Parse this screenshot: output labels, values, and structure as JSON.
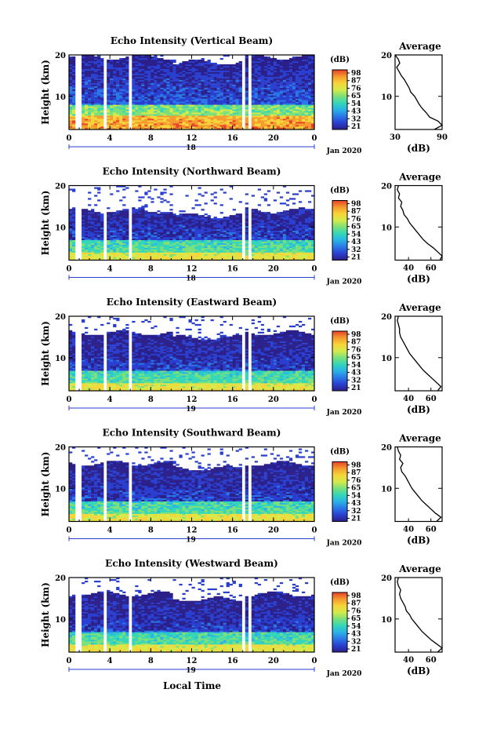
{
  "figure": {
    "x_axis_label": "Local Time",
    "colorbar_unit": "(dB)",
    "colorbar_ticks": [
      "98",
      "87",
      "76",
      "65",
      "54",
      "43",
      "32",
      "21"
    ],
    "colormap": [
      "#2b1f8a",
      "#2a3fd0",
      "#2a78e8",
      "#29b3e6",
      "#34d6b8",
      "#7be07a",
      "#d6ea4a",
      "#f7d43a",
      "#f59a2c",
      "#e8412a"
    ],
    "average_title": "Average",
    "average_xlabel": "(dB)",
    "month_label": "Jan 2020"
  },
  "chart_data": [
    {
      "type": "heatmap",
      "title": "Echo Intensity (Vertical Beam)",
      "ylabel": "Height (km)",
      "xlabel": "",
      "x_ticks": [
        "0",
        "4",
        "8",
        "12",
        "16",
        "20",
        "0"
      ],
      "y_ticks": [
        "20",
        "10"
      ],
      "xlim": [
        0,
        24
      ],
      "ylim": [
        2,
        20
      ],
      "date_label": "18",
      "data_gaps_hours": [
        [
          0.7,
          1.1
        ],
        [
          3.4,
          3.7
        ],
        [
          5.7,
          6.1
        ],
        [
          16.9,
          17.3
        ],
        [
          17.6,
          17.9
        ]
      ],
      "echo_top_km": 19.5,
      "average": {
        "title": "Average",
        "xlabel": "(dB)",
        "x_ticks": [
          "30",
          "90"
        ],
        "xlim": [
          30,
          90
        ],
        "y_ticks": [
          "20",
          "10"
        ],
        "height": [
          2,
          3,
          4,
          5,
          6,
          7,
          8,
          9,
          10,
          11,
          12,
          13,
          14,
          15,
          16,
          17,
          18,
          19,
          20
        ],
        "values": [
          80,
          90,
          85,
          74,
          70,
          65,
          61,
          58,
          55,
          50,
          48,
          45,
          42,
          38,
          35,
          32,
          36,
          34,
          30
        ]
      }
    },
    {
      "type": "heatmap",
      "title": "Echo Intensity (Northward Beam)",
      "ylabel": "Height (km)",
      "xlabel": "",
      "x_ticks": [
        "0",
        "4",
        "8",
        "12",
        "16",
        "20",
        "0"
      ],
      "y_ticks": [
        "20",
        "10"
      ],
      "xlim": [
        0,
        24
      ],
      "ylim": [
        2,
        20
      ],
      "date_label": "18",
      "data_gaps_hours": [
        [
          0.7,
          1.1
        ],
        [
          3.4,
          3.7
        ],
        [
          5.7,
          6.1
        ],
        [
          16.9,
          17.3
        ],
        [
          17.6,
          17.9
        ]
      ],
      "echo_top_km": 14,
      "average": {
        "title": "Average",
        "xlabel": "(dB)",
        "x_ticks": [
          "40",
          "60"
        ],
        "xlim": [
          28,
          70
        ],
        "y_ticks": [
          "20",
          "10"
        ],
        "height": [
          2,
          3,
          4,
          5,
          6,
          7,
          8,
          9,
          10,
          11,
          12,
          13,
          14,
          15,
          16,
          17,
          18,
          19,
          20
        ],
        "values": [
          68,
          70,
          66,
          62,
          57,
          53,
          50,
          47,
          44,
          41,
          39,
          36,
          35,
          33,
          34,
          31,
          32,
          30,
          31
        ]
      }
    },
    {
      "type": "heatmap",
      "title": "Echo Intensity (Eastward Beam)",
      "ylabel": "Height (km)",
      "xlabel": "",
      "x_ticks": [
        "0",
        "4",
        "8",
        "12",
        "16",
        "20",
        "0"
      ],
      "y_ticks": [
        "20",
        "10"
      ],
      "xlim": [
        0,
        24
      ],
      "ylim": [
        2,
        20
      ],
      "date_label": "19",
      "data_gaps_hours": [
        [
          0.7,
          1.1
        ],
        [
          3.4,
          3.7
        ],
        [
          5.7,
          6.1
        ],
        [
          16.9,
          17.3
        ],
        [
          17.6,
          17.9
        ]
      ],
      "echo_top_km": 16,
      "average": {
        "title": "Average",
        "xlabel": "(dB)",
        "x_ticks": [
          "40",
          "60"
        ],
        "xlim": [
          28,
          70
        ],
        "y_ticks": [
          "20",
          "10"
        ],
        "height": [
          2,
          3,
          4,
          5,
          6,
          7,
          8,
          9,
          10,
          11,
          12,
          13,
          14,
          15,
          16,
          17,
          18,
          19,
          20
        ],
        "values": [
          66,
          69,
          65,
          61,
          57,
          53,
          50,
          47,
          44,
          41,
          39,
          37,
          35,
          33,
          32,
          32,
          31,
          30,
          31
        ]
      }
    },
    {
      "type": "heatmap",
      "title": "Echo Intensity (Southward Beam)",
      "ylabel": "Height (km)",
      "xlabel": "",
      "x_ticks": [
        "0",
        "4",
        "8",
        "12",
        "16",
        "20",
        "0"
      ],
      "y_ticks": [
        "20",
        "10"
      ],
      "xlim": [
        0,
        24
      ],
      "ylim": [
        2,
        20
      ],
      "date_label": "19",
      "data_gaps_hours": [
        [
          0.7,
          1.1
        ],
        [
          3.4,
          3.7
        ],
        [
          5.7,
          6.1
        ],
        [
          16.9,
          17.3
        ],
        [
          17.6,
          17.9
        ]
      ],
      "echo_top_km": 16,
      "average": {
        "title": "Average",
        "xlabel": "(dB)",
        "x_ticks": [
          "40",
          "60"
        ],
        "xlim": [
          28,
          70
        ],
        "y_ticks": [
          "20",
          "10"
        ],
        "height": [
          2,
          3,
          4,
          5,
          6,
          7,
          8,
          9,
          10,
          11,
          12,
          13,
          14,
          15,
          16,
          17,
          18,
          19,
          20
        ],
        "values": [
          65,
          69,
          64,
          60,
          56,
          52,
          49,
          46,
          43,
          41,
          39,
          37,
          34,
          33,
          35,
          32,
          33,
          31,
          30
        ]
      }
    },
    {
      "type": "heatmap",
      "title": "Echo Intensity (Westward Beam)",
      "ylabel": "Height (km)",
      "xlabel": "Local Time",
      "x_ticks": [
        "0",
        "4",
        "8",
        "12",
        "16",
        "20",
        "0"
      ],
      "y_ticks": [
        "20",
        "10"
      ],
      "xlim": [
        0,
        24
      ],
      "ylim": [
        2,
        20
      ],
      "date_label": "19",
      "data_gaps_hours": [
        [
          0.7,
          1.1
        ],
        [
          3.4,
          3.7
        ],
        [
          5.7,
          6.1
        ],
        [
          16.9,
          17.3
        ],
        [
          17.6,
          17.9
        ]
      ],
      "echo_top_km": 16,
      "average": {
        "title": "Average",
        "xlabel": "(dB)",
        "x_ticks": [
          "40",
          "60"
        ],
        "xlim": [
          28,
          70
        ],
        "y_ticks": [
          "20",
          "10"
        ],
        "height": [
          2,
          3,
          4,
          5,
          6,
          7,
          8,
          9,
          10,
          11,
          12,
          13,
          14,
          15,
          16,
          17,
          18,
          19,
          20
        ],
        "values": [
          66,
          70,
          65,
          60,
          56,
          52,
          49,
          46,
          43,
          41,
          38,
          37,
          35,
          33,
          32,
          33,
          31,
          30,
          31
        ]
      }
    }
  ]
}
